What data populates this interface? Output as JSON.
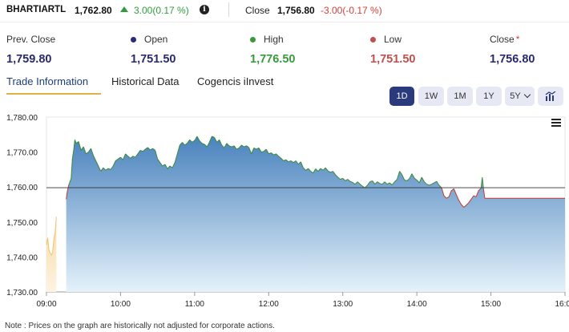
{
  "ticker": {
    "symbol": "BHARTIARTL",
    "ltp": "1,762.80",
    "change": "3.00(0.17 %)",
    "info_icon": "info-icon",
    "close_label": "Close",
    "close_value": "1,756.80",
    "close_change": "-3.00(-0.17 %)"
  },
  "stats": {
    "prev_close": {
      "label": "Prev. Close",
      "value": "1,759.80"
    },
    "open": {
      "label": "Open",
      "value": "1,751.50",
      "color": "#2a2a7c"
    },
    "high": {
      "label": "High",
      "value": "1,776.50",
      "color": "#3a9a3a"
    },
    "low": {
      "label": "Low",
      "value": "1,751.50",
      "color": "#c0504d"
    },
    "close": {
      "label": "Close",
      "marker": "*",
      "value": "1,756.80"
    }
  },
  "tabs": [
    {
      "label": "Trade Information",
      "active": true
    },
    {
      "label": "Historical Data",
      "active": false
    },
    {
      "label": "Cogencis iInvest",
      "active": false
    }
  ],
  "ranges": [
    "1D",
    "1W",
    "1M",
    "1Y",
    "5Y"
  ],
  "active_range": "1D",
  "menu_icon": "hamburger-icon",
  "chart_toggle_icon": "bar-chart-icon",
  "note": "Note : Prices on the graph are historically not adjusted for corporate actions.",
  "chart_data": {
    "type": "area",
    "y_ticks": [
      "1,780.00",
      "1,770.00",
      "1,760.00",
      "1,750.00",
      "1,740.00",
      "1,730.00"
    ],
    "x_ticks": [
      "09:00",
      "10:00",
      "11:00",
      "12:00",
      "13:00",
      "14:00",
      "15:00",
      "16:00"
    ],
    "ylim": [
      1730,
      1780
    ],
    "xlim_minutes": [
      540,
      960
    ],
    "reference_line": 1759.8,
    "colors": {
      "up": "#3a8a3a",
      "down": "#c0392b",
      "fill_top": "#4a82bd",
      "fill_bottom": "#e4f2fa",
      "pre_open": "#f2c26e"
    },
    "pre_open_series": [
      [
        540,
        1743.5
      ],
      [
        541,
        1745.5
      ],
      [
        542,
        1742
      ],
      [
        543,
        1741
      ],
      [
        544,
        1740.5
      ],
      [
        545,
        1741.5
      ],
      [
        546,
        1745
      ],
      [
        547,
        1747
      ],
      [
        548,
        1751.5
      ]
    ],
    "series": [
      [
        556,
        1756.5
      ],
      [
        557,
        1759
      ],
      [
        558,
        1760.5
      ],
      [
        559,
        1761.5
      ],
      [
        560,
        1762.5
      ],
      [
        561,
        1768
      ],
      [
        562,
        1770.5
      ],
      [
        563,
        1773.5
      ],
      [
        564,
        1772.5
      ],
      [
        566,
        1773
      ],
      [
        568,
        1770.5
      ],
      [
        570,
        1771.5
      ],
      [
        572,
        1769.5
      ],
      [
        574,
        1770
      ],
      [
        576,
        1771
      ],
      [
        578,
        1769
      ],
      [
        580,
        1767.5
      ],
      [
        582,
        1766
      ],
      [
        584,
        1764.5
      ],
      [
        586,
        1765.5
      ],
      [
        588,
        1764.8
      ],
      [
        590,
        1765.3
      ],
      [
        592,
        1765
      ],
      [
        594,
        1766
      ],
      [
        596,
        1767.5
      ],
      [
        598,
        1768
      ],
      [
        600,
        1768.5
      ],
      [
        602,
        1767.8
      ],
      [
        604,
        1769.5
      ],
      [
        606,
        1768.8
      ],
      [
        608,
        1768.2
      ],
      [
        610,
        1768.8
      ],
      [
        612,
        1768.5
      ],
      [
        614,
        1769.5
      ],
      [
        616,
        1770.5
      ],
      [
        618,
        1770.2
      ],
      [
        620,
        1770.8
      ],
      [
        622,
        1771.3
      ],
      [
        624,
        1770.6
      ],
      [
        626,
        1771
      ],
      [
        628,
        1770.5
      ],
      [
        630,
        1768
      ],
      [
        632,
        1767
      ],
      [
        634,
        1766
      ],
      [
        636,
        1766.5
      ],
      [
        638,
        1765.2
      ],
      [
        640,
        1766
      ],
      [
        642,
        1765.5
      ],
      [
        644,
        1767
      ],
      [
        646,
        1769.5
      ],
      [
        648,
        1772
      ],
      [
        650,
        1772.8
      ],
      [
        652,
        1772
      ],
      [
        654,
        1772.5
      ],
      [
        656,
        1773.5
      ],
      [
        658,
        1772.8
      ],
      [
        660,
        1773.3
      ],
      [
        662,
        1774.5
      ],
      [
        664,
        1773.2
      ],
      [
        666,
        1772.5
      ],
      [
        668,
        1772.2
      ],
      [
        670,
        1771.5
      ],
      [
        672,
        1772.8
      ],
      [
        674,
        1774.5
      ],
      [
        676,
        1774.2
      ],
      [
        678,
        1772.8
      ],
      [
        680,
        1773.5
      ],
      [
        682,
        1772
      ],
      [
        684,
        1771.2
      ],
      [
        686,
        1772.5
      ],
      [
        688,
        1771.8
      ],
      [
        690,
        1771.5
      ],
      [
        692,
        1771.8
      ],
      [
        694,
        1770.8
      ],
      [
        696,
        1771.2
      ],
      [
        698,
        1772
      ],
      [
        700,
        1771.5
      ],
      [
        702,
        1771.8
      ],
      [
        704,
        1771.3
      ],
      [
        706,
        1769.5
      ],
      [
        708,
        1771.2
      ],
      [
        710,
        1770.8
      ],
      [
        712,
        1771.2
      ],
      [
        714,
        1770
      ],
      [
        716,
        1770.2
      ],
      [
        718,
        1770.8
      ],
      [
        720,
        1769.5
      ],
      [
        722,
        1769.8
      ],
      [
        724,
        1769.2
      ],
      [
        726,
        1769.5
      ],
      [
        728,
        1768.8
      ],
      [
        730,
        1768.2
      ],
      [
        732,
        1767.5
      ],
      [
        734,
        1767.8
      ],
      [
        736,
        1767.2
      ],
      [
        738,
        1767.5
      ],
      [
        740,
        1767
      ],
      [
        742,
        1767.5
      ],
      [
        744,
        1766.5
      ],
      [
        746,
        1767.2
      ],
      [
        748,
        1765.5
      ],
      [
        750,
        1764.8
      ],
      [
        752,
        1765.3
      ],
      [
        754,
        1764.5
      ],
      [
        756,
        1764
      ],
      [
        758,
        1765.2
      ],
      [
        760,
        1764.5
      ],
      [
        762,
        1765.3
      ],
      [
        764,
        1764.8
      ],
      [
        766,
        1765.5
      ],
      [
        768,
        1764.6
      ],
      [
        770,
        1764.2
      ],
      [
        772,
        1764.5
      ],
      [
        774,
        1763.5
      ],
      [
        776,
        1762.8
      ],
      [
        778,
        1762.2
      ],
      [
        780,
        1762.5
      ],
      [
        782,
        1761.8
      ],
      [
        784,
        1762.2
      ],
      [
        786,
        1761.6
      ],
      [
        788,
        1761.3
      ],
      [
        790,
        1760.8
      ],
      [
        792,
        1761.5
      ],
      [
        794,
        1760.8
      ],
      [
        796,
        1760.2
      ],
      [
        798,
        1759.8
      ],
      [
        800,
        1760.5
      ],
      [
        802,
        1761.5
      ],
      [
        804,
        1761.8
      ],
      [
        806,
        1760.8
      ],
      [
        808,
        1761.5
      ],
      [
        810,
        1761
      ],
      [
        812,
        1760.8
      ],
      [
        814,
        1761.5
      ],
      [
        816,
        1760.8
      ],
      [
        818,
        1761.2
      ],
      [
        820,
        1760.6
      ],
      [
        822,
        1761.5
      ],
      [
        824,
        1762.2
      ],
      [
        826,
        1764.5
      ],
      [
        828,
        1763.5
      ],
      [
        830,
        1762
      ],
      [
        832,
        1761.8
      ],
      [
        834,
        1762.4
      ],
      [
        836,
        1763.8
      ],
      [
        838,
        1762.5
      ],
      [
        840,
        1762
      ],
      [
        842,
        1761.2
      ],
      [
        844,
        1762.8
      ],
      [
        846,
        1761.5
      ],
      [
        848,
        1760.8
      ],
      [
        850,
        1760.5
      ],
      [
        852,
        1760.8
      ],
      [
        854,
        1761.2
      ],
      [
        856,
        1761.6
      ],
      [
        858,
        1760.5
      ],
      [
        860,
        1759.8
      ],
      [
        862,
        1757.5
      ],
      [
        864,
        1756.8
      ],
      [
        866,
        1757.2
      ],
      [
        868,
        1759
      ],
      [
        870,
        1759.5
      ],
      [
        872,
        1757.8
      ],
      [
        874,
        1756.2
      ],
      [
        876,
        1755
      ],
      [
        878,
        1754.2
      ],
      [
        880,
        1754.8
      ],
      [
        882,
        1755.5
      ],
      [
        884,
        1756.5
      ],
      [
        886,
        1757.5
      ],
      [
        888,
        1757.2
      ],
      [
        890,
        1759
      ],
      [
        892,
        1759.6
      ],
      [
        893,
        1762.8
      ],
      [
        894,
        1759.5
      ],
      [
        895,
        1756.8
      ],
      [
        960,
        1756.8
      ]
    ]
  }
}
